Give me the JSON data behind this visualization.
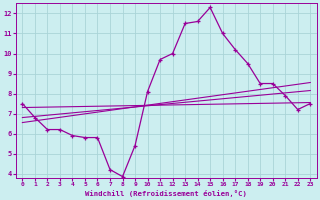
{
  "xlabel": "Windchill (Refroidissement éolien,°C)",
  "background_color": "#cceef0",
  "grid_color": "#aad4d8",
  "line_color": "#990099",
  "xlim": [
    -0.5,
    23.5
  ],
  "ylim": [
    3.8,
    12.5
  ],
  "xticks": [
    0,
    1,
    2,
    3,
    4,
    5,
    6,
    7,
    8,
    9,
    10,
    11,
    12,
    13,
    14,
    15,
    16,
    17,
    18,
    19,
    20,
    21,
    22,
    23
  ],
  "yticks": [
    4,
    5,
    6,
    7,
    8,
    9,
    10,
    11,
    12
  ],
  "main_x": [
    0,
    1,
    2,
    3,
    4,
    5,
    6,
    7,
    8,
    9,
    10,
    11,
    12,
    13,
    14,
    15,
    16,
    17,
    18,
    19,
    20,
    21,
    22,
    23
  ],
  "main_y": [
    7.5,
    6.8,
    6.2,
    6.2,
    5.9,
    5.8,
    5.8,
    4.2,
    3.85,
    5.4,
    8.1,
    9.7,
    10.0,
    11.5,
    11.6,
    12.3,
    11.0,
    10.2,
    9.5,
    8.5,
    8.5,
    7.9,
    7.2,
    7.5
  ],
  "line1_x": [
    0,
    23
  ],
  "line1_y": [
    7.3,
    7.55
  ],
  "line2_x": [
    0,
    23
  ],
  "line2_y": [
    6.8,
    8.15
  ],
  "line3_x": [
    0,
    23
  ],
  "line3_y": [
    6.55,
    8.55
  ]
}
